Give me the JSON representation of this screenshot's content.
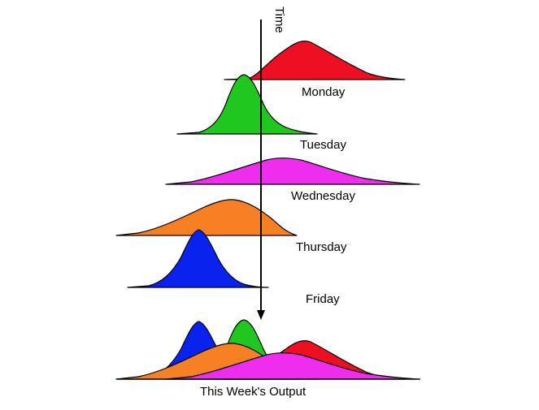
{
  "diagram": {
    "time_label": "Time",
    "days": [
      {
        "label": "Monday",
        "color": "#ee0f23"
      },
      {
        "label": "Tuesday",
        "color": "#1fc71f"
      },
      {
        "label": "Wednesday",
        "color": "#ee2dee"
      },
      {
        "label": "Thursday",
        "color": "#f77f24"
      },
      {
        "label": "Friday",
        "color": "#0a22ee"
      }
    ],
    "output_label": "This Week's Output"
  }
}
